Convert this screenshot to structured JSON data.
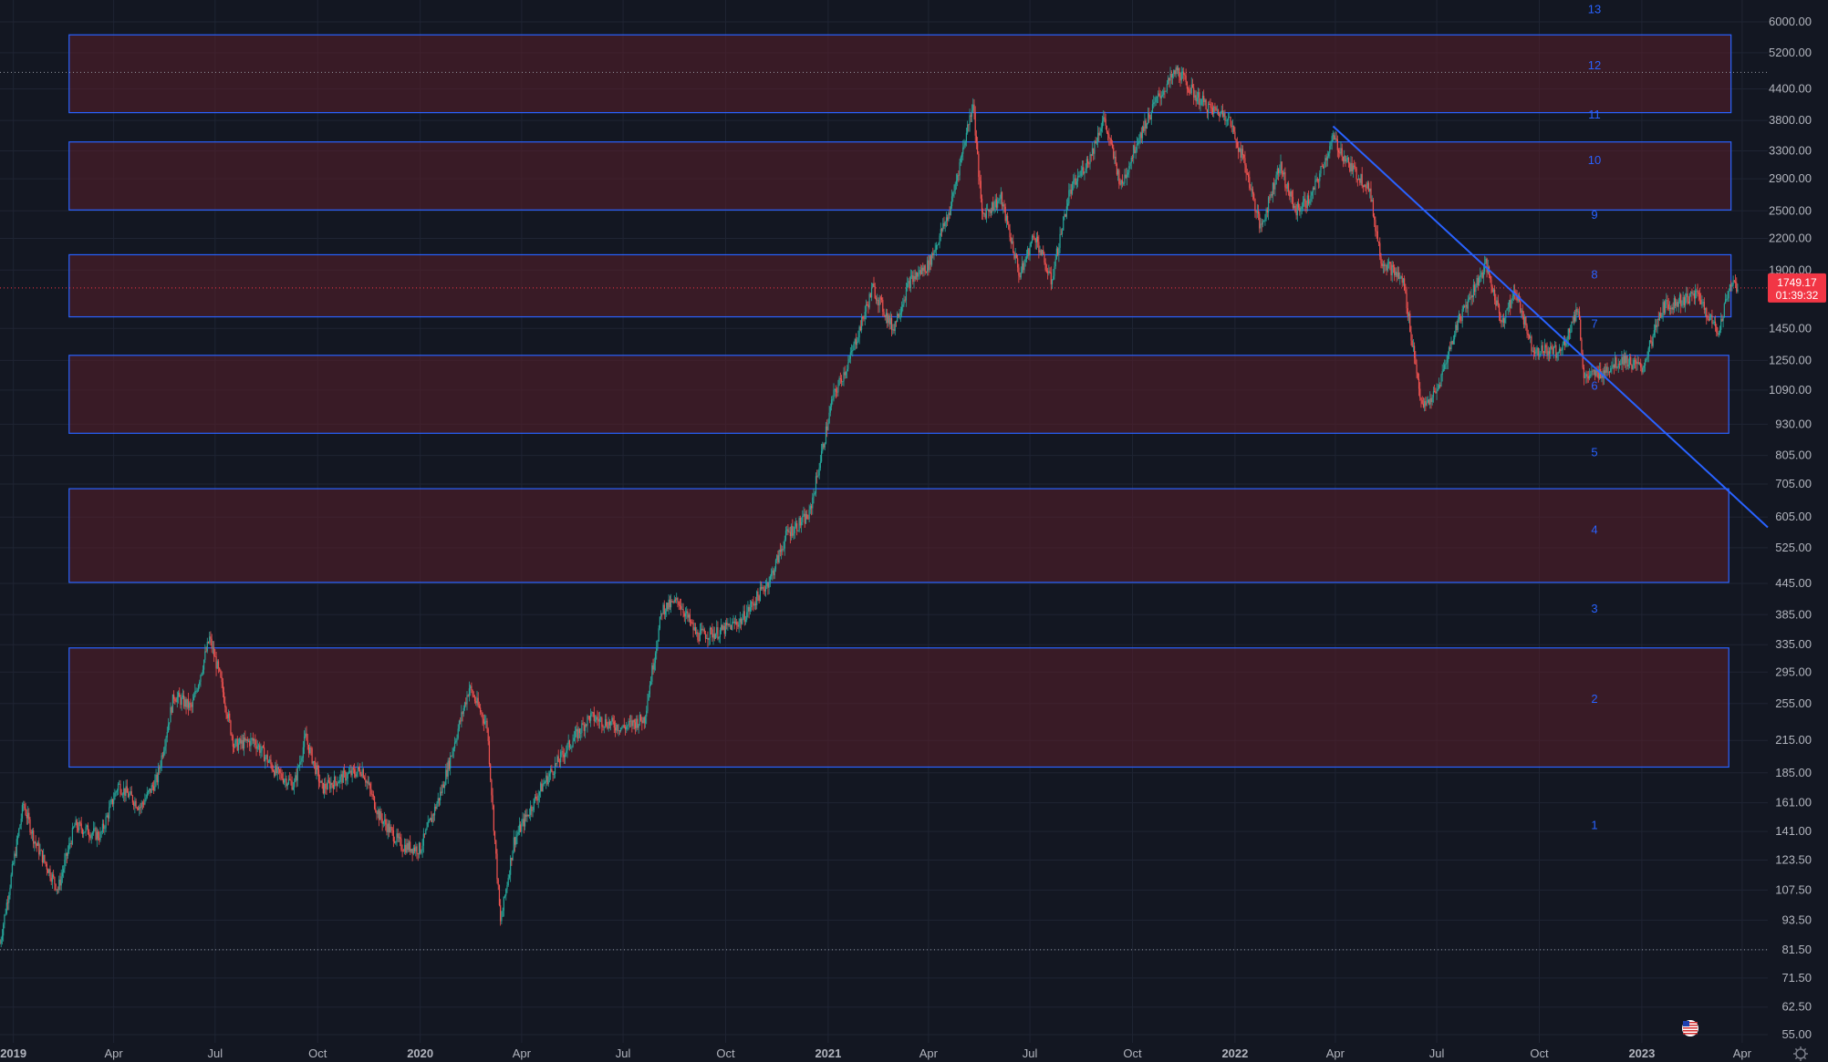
{
  "theme": {
    "background": "#131722",
    "grid": "#1f2433",
    "up_color": "#26a69a",
    "down_color": "#ef5350",
    "zone_fill": "#5a1f2a",
    "zone_stroke": "#2962ff",
    "trendline": "#2962ff",
    "axis_text": "#b2b5be",
    "last_price_bg": "#f23645"
  },
  "chart_data": {
    "type": "candlestick",
    "scale": "log",
    "title": "",
    "xlabel": "",
    "ylabel": "",
    "ylim": [
      55,
      6000
    ],
    "xlim": [
      "2018-12-20",
      "2023-04-24"
    ],
    "price_ticks": [
      "6000.00",
      "5200.00",
      "4400.00",
      "3800.00",
      "3300.00",
      "2900.00",
      "2500.00",
      "2200.00",
      "1900.00",
      "1450.00",
      "1250.00",
      "1090.00",
      "930.00",
      "805.00",
      "705.00",
      "605.00",
      "525.00",
      "445.00",
      "385.00",
      "335.00",
      "295.00",
      "255.00",
      "215.00",
      "185.00",
      "161.00",
      "141.00",
      "123.50",
      "107.50",
      "93.50",
      "81.50",
      "71.50",
      "62.50",
      "55.00"
    ],
    "time_ticks": [
      {
        "label": "2019",
        "date": "2019-01-01"
      },
      {
        "label": "Apr",
        "date": "2019-04-01"
      },
      {
        "label": "Jul",
        "date": "2019-07-01"
      },
      {
        "label": "Oct",
        "date": "2019-10-01"
      },
      {
        "label": "2020",
        "date": "2020-01-01"
      },
      {
        "label": "Apr",
        "date": "2020-04-01"
      },
      {
        "label": "Jul",
        "date": "2020-07-01"
      },
      {
        "label": "Oct",
        "date": "2020-10-01"
      },
      {
        "label": "2021",
        "date": "2021-01-01"
      },
      {
        "label": "Apr",
        "date": "2021-04-01"
      },
      {
        "label": "Jul",
        "date": "2021-07-01"
      },
      {
        "label": "Oct",
        "date": "2021-10-01"
      },
      {
        "label": "2022",
        "date": "2022-01-01"
      },
      {
        "label": "Apr",
        "date": "2022-04-01"
      },
      {
        "label": "Jul",
        "date": "2022-07-01"
      },
      {
        "label": "Oct",
        "date": "2022-10-01"
      },
      {
        "label": "2023",
        "date": "2023-01-01"
      },
      {
        "label": "Apr",
        "date": "2023-04-01"
      }
    ],
    "zones": [
      {
        "start": "2019-02-20",
        "end": "2023-03-20",
        "high": 330,
        "low": 190
      },
      {
        "start": "2019-02-20",
        "end": "2023-03-20",
        "high": 690,
        "low": 447
      },
      {
        "start": "2019-02-20",
        "end": "2023-03-20",
        "high": 1280,
        "low": 892
      },
      {
        "start": "2019-02-20",
        "end": "2023-03-22",
        "high": 2040,
        "low": 1530
      },
      {
        "start": "2019-02-20",
        "end": "2023-03-22",
        "high": 3440,
        "low": 2510
      },
      {
        "start": "2019-02-20",
        "end": "2023-03-22",
        "high": 5650,
        "low": 3940
      }
    ],
    "zone_numbers": [
      {
        "label": "1",
        "value": 145
      },
      {
        "label": "2",
        "value": 260
      },
      {
        "label": "3",
        "value": 395
      },
      {
        "label": "4",
        "value": 570
      },
      {
        "label": "5",
        "value": 815
      },
      {
        "label": "6",
        "value": 1110
      },
      {
        "label": "7",
        "value": 1480
      },
      {
        "label": "8",
        "value": 1860
      },
      {
        "label": "9",
        "value": 2450
      },
      {
        "label": "10",
        "value": 3160
      },
      {
        "label": "11",
        "value": 3900
      },
      {
        "label": "12",
        "value": 4900
      },
      {
        "label": "13",
        "value": 6350
      }
    ],
    "trendline": {
      "x1": "2022-03-30",
      "y1": 3700,
      "x2": "2023-04-24",
      "y2": 577
    },
    "reference_lines": [
      {
        "value": 4750,
        "style": "dotted"
      },
      {
        "value": 81.5,
        "style": "dotted"
      }
    ],
    "last_price": "1749.17",
    "countdown": "01:39:32",
    "price_path": [
      [
        "2018-12-20",
        84
      ],
      [
        "2019-01-10",
        160
      ],
      [
        "2019-01-20",
        135
      ],
      [
        "2019-02-10",
        108
      ],
      [
        "2019-02-25",
        145
      ],
      [
        "2019-03-20",
        138
      ],
      [
        "2019-04-05",
        175
      ],
      [
        "2019-04-25",
        158
      ],
      [
        "2019-05-10",
        180
      ],
      [
        "2019-05-25",
        265
      ],
      [
        "2019-06-10",
        250
      ],
      [
        "2019-06-26",
        345
      ],
      [
        "2019-07-05",
        290
      ],
      [
        "2019-07-18",
        210
      ],
      [
        "2019-08-05",
        215
      ],
      [
        "2019-08-25",
        185
      ],
      [
        "2019-09-10",
        175
      ],
      [
        "2019-09-20",
        218
      ],
      [
        "2019-10-05",
        172
      ],
      [
        "2019-10-25",
        182
      ],
      [
        "2019-11-10",
        188
      ],
      [
        "2019-11-25",
        152
      ],
      [
        "2019-12-15",
        132
      ],
      [
        "2020-01-01",
        130
      ],
      [
        "2020-01-20",
        170
      ],
      [
        "2020-02-14",
        275
      ],
      [
        "2020-03-01",
        230
      ],
      [
        "2020-03-13",
        92
      ],
      [
        "2020-03-25",
        135
      ],
      [
        "2020-04-20",
        175
      ],
      [
        "2020-05-10",
        205
      ],
      [
        "2020-06-01",
        240
      ],
      [
        "2020-07-01",
        228
      ],
      [
        "2020-07-20",
        238
      ],
      [
        "2020-08-05",
        395
      ],
      [
        "2020-08-20",
        410
      ],
      [
        "2020-09-05",
        350
      ],
      [
        "2020-09-25",
        355
      ],
      [
        "2020-10-15",
        375
      ],
      [
        "2020-11-10",
        455
      ],
      [
        "2020-11-25",
        560
      ],
      [
        "2020-12-15",
        610
      ],
      [
        "2021-01-05",
        1050
      ],
      [
        "2021-01-20",
        1250
      ],
      [
        "2021-02-10",
        1750
      ],
      [
        "2021-02-28",
        1450
      ],
      [
        "2021-03-15",
        1800
      ],
      [
        "2021-04-01",
        1950
      ],
      [
        "2021-04-20",
        2500
      ],
      [
        "2021-05-11",
        4150
      ],
      [
        "2021-05-19",
        2450
      ],
      [
        "2021-06-05",
        2650
      ],
      [
        "2021-06-22",
        1850
      ],
      [
        "2021-07-05",
        2250
      ],
      [
        "2021-07-20",
        1800
      ],
      [
        "2021-08-05",
        2700
      ],
      [
        "2021-08-25",
        3250
      ],
      [
        "2021-09-05",
        3850
      ],
      [
        "2021-09-21",
        2800
      ],
      [
        "2021-10-05",
        3450
      ],
      [
        "2021-10-22",
        4150
      ],
      [
        "2021-11-10",
        4800
      ],
      [
        "2021-11-25",
        4300
      ],
      [
        "2021-12-10",
        4000
      ],
      [
        "2021-12-25",
        3900
      ],
      [
        "2022-01-10",
        3100
      ],
      [
        "2022-01-24",
        2300
      ],
      [
        "2022-02-10",
        3100
      ],
      [
        "2022-02-24",
        2500
      ],
      [
        "2022-03-10",
        2650
      ],
      [
        "2022-03-30",
        3500
      ],
      [
        "2022-04-15",
        3050
      ],
      [
        "2022-05-01",
        2800
      ],
      [
        "2022-05-12",
        2000
      ],
      [
        "2022-06-01",
        1800
      ],
      [
        "2022-06-18",
        1000
      ],
      [
        "2022-07-01",
        1080
      ],
      [
        "2022-07-20",
        1500
      ],
      [
        "2022-08-14",
        1950
      ],
      [
        "2022-08-28",
        1500
      ],
      [
        "2022-09-10",
        1720
      ],
      [
        "2022-09-25",
        1320
      ],
      [
        "2022-10-20",
        1300
      ],
      [
        "2022-11-05",
        1600
      ],
      [
        "2022-11-10",
        1150
      ],
      [
        "2022-11-25",
        1180
      ],
      [
        "2022-12-15",
        1260
      ],
      [
        "2023-01-01",
        1200
      ],
      [
        "2023-01-20",
        1600
      ],
      [
        "2023-02-05",
        1650
      ],
      [
        "2023-02-20",
        1700
      ],
      [
        "2023-03-10",
        1420
      ],
      [
        "2023-03-22",
        1800
      ],
      [
        "2023-03-28",
        1749
      ]
    ]
  }
}
